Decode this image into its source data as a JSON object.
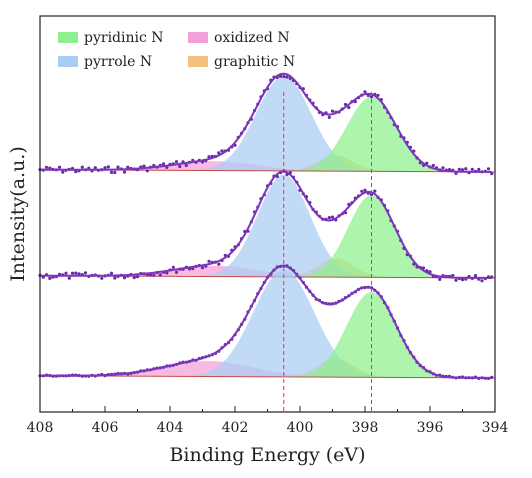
{
  "chart_data": {
    "type": "area",
    "xlabel": "Binding Energy (eV)",
    "ylabel": "Intensity(a.u.)",
    "xlim": [
      408,
      394
    ],
    "x_reversed": true,
    "xticks": [
      408,
      406,
      404,
      402,
      400,
      398,
      396,
      394
    ],
    "y_ticks_shown": false,
    "grid": false,
    "legend_placement": "top-left",
    "legend": [
      {
        "name": "pyridinic N",
        "color": "#8ef08e"
      },
      {
        "name": "pyrrole N",
        "color": "#a9cdf3"
      },
      {
        "name": "oxidized N",
        "color": "#f2a0d8"
      },
      {
        "name": "graphitic N",
        "color": "#f4c080"
      }
    ],
    "reference_lines": [
      {
        "x": 400.5,
        "color": "#d24040",
        "style": "dashed"
      },
      {
        "x": 397.8,
        "color": "#d24040",
        "style": "dashed"
      }
    ],
    "spectra": [
      {
        "baseline": 0,
        "peaks": [
          {
            "name": "pyrrole N",
            "center": 400.5,
            "height": 0.61,
            "fwhm": 2.0
          },
          {
            "name": "pyridinic N",
            "center": 397.8,
            "height": 0.48,
            "fwhm": 1.8
          },
          {
            "name": "graphitic N",
            "center": 398.9,
            "height": 0.1,
            "fwhm": 1.3
          },
          {
            "name": "oxidized N",
            "center": 402.6,
            "height": 0.06,
            "fwhm": 3.0
          }
        ]
      },
      {
        "baseline": 0,
        "peaks": [
          {
            "name": "pyrrole N",
            "center": 400.5,
            "height": 0.66,
            "fwhm": 1.9
          },
          {
            "name": "pyridinic N",
            "center": 397.8,
            "height": 0.53,
            "fwhm": 1.7
          },
          {
            "name": "graphitic N",
            "center": 398.9,
            "height": 0.12,
            "fwhm": 1.3
          },
          {
            "name": "oxidized N",
            "center": 402.6,
            "height": 0.07,
            "fwhm": 3.0
          }
        ]
      },
      {
        "baseline": 0,
        "peaks": [
          {
            "name": "pyrrole N",
            "center": 400.5,
            "height": 0.69,
            "fwhm": 2.2
          },
          {
            "name": "pyridinic N",
            "center": 397.8,
            "height": 0.55,
            "fwhm": 1.8
          },
          {
            "name": "graphitic N",
            "center": 398.9,
            "height": 0.12,
            "fwhm": 1.3
          },
          {
            "name": "oxidized N",
            "center": 402.8,
            "height": 0.1,
            "fwhm": 3.2
          }
        ]
      }
    ]
  }
}
